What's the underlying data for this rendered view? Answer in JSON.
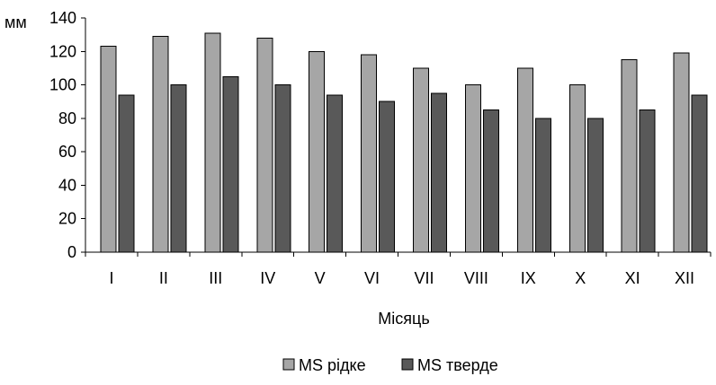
{
  "chart_data": {
    "type": "bar",
    "title": "",
    "xlabel": "Місяць",
    "ylabel": "мм",
    "ylim": [
      0,
      140
    ],
    "yticks": [
      0,
      20,
      40,
      60,
      80,
      100,
      120,
      140
    ],
    "grid": false,
    "legend_position": "bottom",
    "categories": [
      "I",
      "II",
      "III",
      "IV",
      "V",
      "VI",
      "VII",
      "VIII",
      "IX",
      "X",
      "XI",
      "XII"
    ],
    "series": [
      {
        "name": "MS рідке",
        "color": "#a6a6a6",
        "values": [
          123,
          129,
          131,
          128,
          120,
          118,
          110,
          100,
          110,
          100,
          115,
          119
        ]
      },
      {
        "name": "MS тверде",
        "color": "#595959",
        "values": [
          94,
          100,
          105,
          100,
          94,
          90,
          95,
          85,
          80,
          80,
          85,
          94
        ]
      }
    ]
  }
}
